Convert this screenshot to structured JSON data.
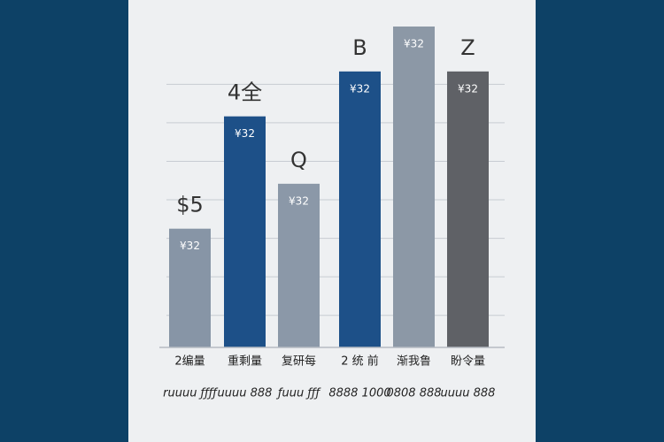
{
  "chart_data": {
    "type": "bar",
    "categories": [
      "2编量",
      "重剩量",
      "复研每",
      "2 统 前",
      "渐我鲁",
      "盼令量"
    ],
    "category_notes": [
      "ruuuu ƒƒƒƒ",
      "uuuu 888",
      "ƒuuu ƒƒƒ",
      "8888 1000",
      "0808 888",
      "uuuu 888"
    ],
    "values": [
      37,
      72,
      51,
      86,
      100,
      86
    ],
    "colors": [
      "#8795a6",
      "#1d5088",
      "#8b98a8",
      "#1d5088",
      "#8c98a6",
      "#5f6166"
    ],
    "bar_labels": [
      "¥32",
      "¥32",
      "¥32",
      "¥32",
      "¥32",
      "¥32"
    ],
    "annotations": [
      "$5",
      "4全",
      "Q",
      "B",
      "",
      "Z"
    ],
    "ylim": [
      0,
      100
    ],
    "yticks": [
      0,
      10,
      22,
      34,
      46,
      58,
      70,
      82
    ],
    "grid": true
  }
}
